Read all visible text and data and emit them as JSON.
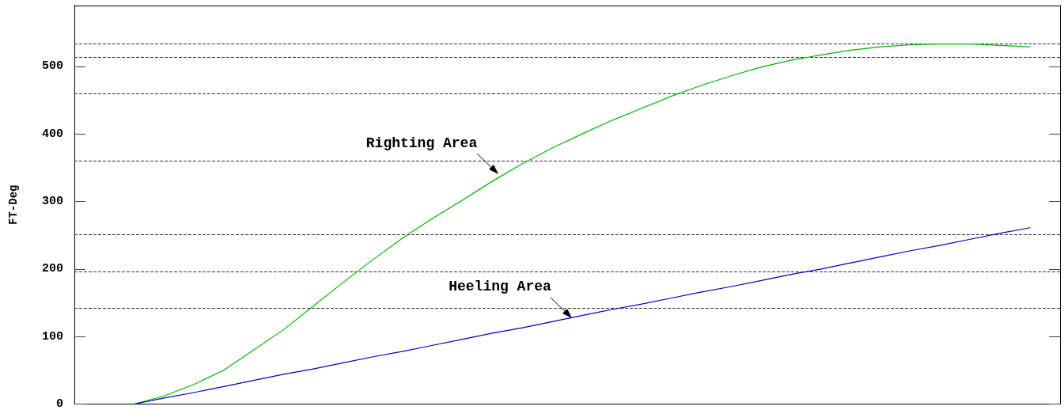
{
  "chart_data": {
    "type": "line",
    "ylabel": "FT-Deg",
    "categories": [
      null,
      null,
      null,
      null,
      null,
      null,
      null,
      null,
      null,
      null,
      null,
      null,
      null,
      null,
      null,
      null,
      null,
      null,
      null,
      null,
      null,
      null,
      null,
      null,
      null,
      null,
      null,
      null,
      null,
      null,
      null,
      null,
      null,
      null
    ],
    "ylim": [
      0,
      590
    ],
    "yticks": [
      0,
      100,
      200,
      300,
      400,
      500
    ],
    "tick_labels": "y",
    "marker": "none",
    "line_style": "solid",
    "series": [
      {
        "color": "#00b400",
        "values": [
          null,
          null,
          0,
          12,
          29,
          50,
          80,
          110,
          145,
          180,
          214,
          246,
          275,
          302,
          330,
          356,
          379,
          400,
          420,
          438,
          456,
          472,
          486,
          499,
          509,
          517,
          524,
          529,
          532,
          533,
          533,
          531,
          529,
          null
        ]
      },
      {
        "color": "#0000c0",
        "values": [
          null,
          null,
          0,
          9,
          17,
          26,
          35,
          44,
          52,
          61,
          70,
          78,
          87,
          96,
          105,
          113,
          122,
          131,
          140,
          148,
          157,
          166,
          174,
          183,
          192,
          200,
          209,
          218,
          227,
          235,
          244,
          253,
          261,
          null
        ]
      }
    ],
    "ref_lines": [
      {
        "axis": "y",
        "value": 533,
        "line_style": "dashed"
      },
      {
        "axis": "y",
        "value": 513,
        "line_style": "dashed"
      },
      {
        "axis": "y",
        "value": 460,
        "line_style": "dashed"
      },
      {
        "axis": "y",
        "value": 360,
        "line_style": "dashed"
      },
      {
        "axis": "y",
        "value": 251,
        "line_style": "dashed"
      },
      {
        "axis": "y",
        "value": 196,
        "line_style": "dashed"
      },
      {
        "axis": "y",
        "value": 142,
        "line_style": "dashed"
      }
    ],
    "annotations": [
      "Righting Area",
      "Heeling Area"
    ]
  }
}
